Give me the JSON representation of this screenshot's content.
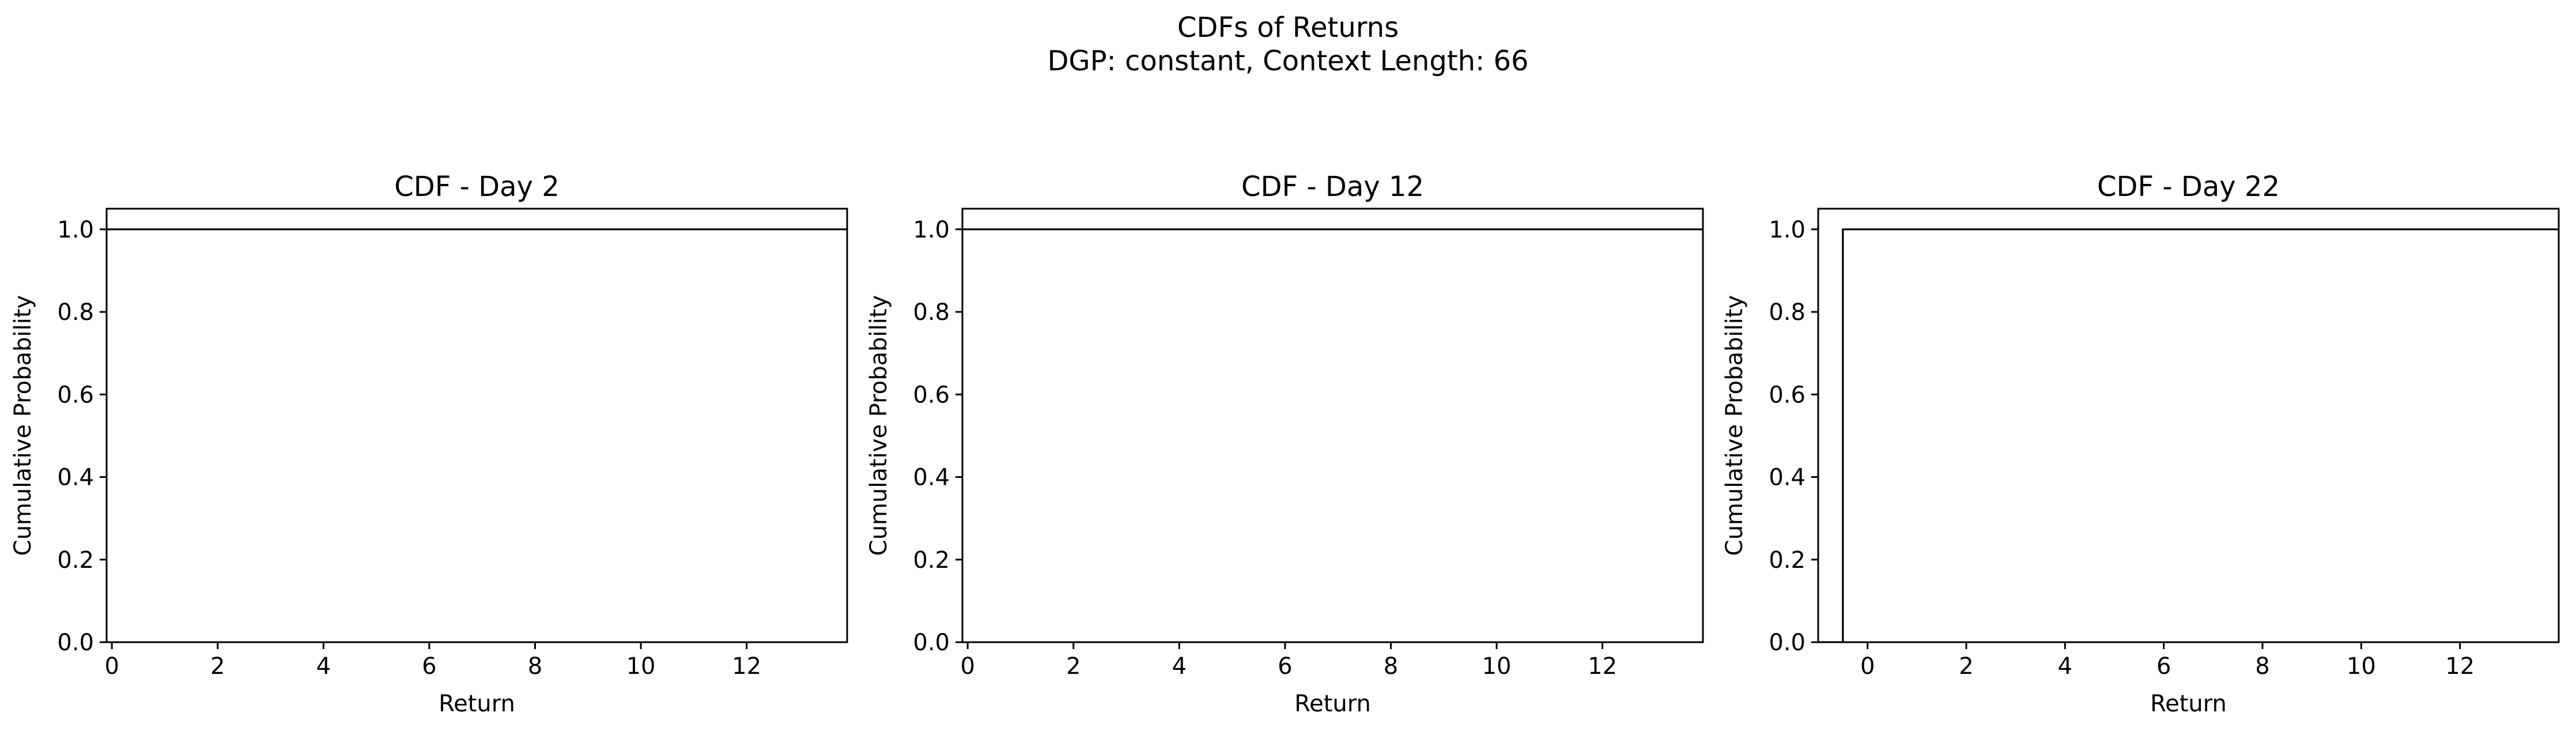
{
  "figure": {
    "title_line1": "CDFs of Returns",
    "title_line2": "DGP: constant, Context Length: 66"
  },
  "chart_data": [
    {
      "type": "line",
      "title": "CDF - Day 2",
      "xlabel": "Return",
      "ylabel": "Cumulative Probability",
      "xlim": [
        -0.1,
        13.9
      ],
      "ylim": [
        0.0,
        1.05
      ],
      "x_ticks": [
        0,
        2,
        4,
        6,
        8,
        10,
        12
      ],
      "y_ticks": [
        0.0,
        0.2,
        0.4,
        0.6,
        0.8,
        1.0
      ],
      "grid": false,
      "legend": false,
      "series": [
        {
          "x": [
            -0.1,
            13.9
          ],
          "y": [
            1.0,
            1.0
          ]
        }
      ]
    },
    {
      "type": "line",
      "title": "CDF - Day 12",
      "xlabel": "Return",
      "ylabel": "Cumulative Probability",
      "xlim": [
        -0.1,
        13.9
      ],
      "ylim": [
        0.0,
        1.05
      ],
      "x_ticks": [
        0,
        2,
        4,
        6,
        8,
        10,
        12
      ],
      "y_ticks": [
        0.0,
        0.2,
        0.4,
        0.6,
        0.8,
        1.0
      ],
      "grid": false,
      "legend": false,
      "series": [
        {
          "x": [
            -0.1,
            13.9
          ],
          "y": [
            1.0,
            1.0
          ]
        }
      ]
    },
    {
      "type": "line",
      "title": "CDF - Day 22",
      "xlabel": "Return",
      "ylabel": "Cumulative Probability",
      "xlim": [
        -1.0,
        14.0
      ],
      "ylim": [
        0.0,
        1.05
      ],
      "x_ticks": [
        0,
        2,
        4,
        6,
        8,
        10,
        12
      ],
      "y_ticks": [
        0.0,
        0.2,
        0.4,
        0.6,
        0.8,
        1.0
      ],
      "grid": false,
      "legend": false,
      "series": [
        {
          "x": [
            -1.0,
            -0.5,
            -0.5,
            14.0
          ],
          "y": [
            0.0,
            0.0,
            1.0,
            1.0
          ]
        }
      ]
    }
  ]
}
